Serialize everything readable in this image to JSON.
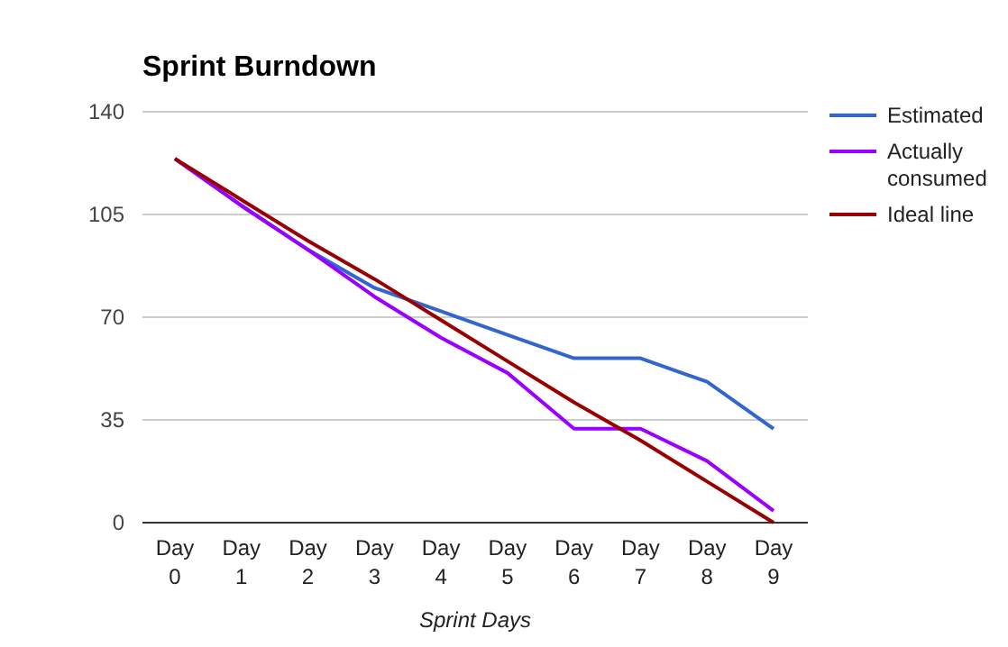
{
  "chart_data": {
    "type": "line",
    "title": "Sprint Burndown",
    "xlabel": "Sprint Days",
    "categories": [
      "Day 0",
      "Day 1",
      "Day 2",
      "Day 3",
      "Day 4",
      "Day 5",
      "Day 6",
      "Day 7",
      "Day 8",
      "Day 9"
    ],
    "series": [
      {
        "name": "Estimated",
        "color": "#3366cc",
        "values": [
          124,
          108,
          93,
          80,
          72,
          64,
          56,
          56,
          48,
          32
        ]
      },
      {
        "name": "Actually consumed",
        "color": "#9900ff",
        "values": [
          124,
          108,
          93,
          77,
          63,
          51,
          32,
          32,
          21,
          4
        ]
      },
      {
        "name": "Ideal line",
        "color": "#990000",
        "values": [
          124,
          110,
          96,
          83,
          69,
          55,
          41,
          28,
          14,
          0
        ]
      }
    ],
    "ylim": [
      0,
      140
    ],
    "yticks": [
      0,
      35,
      70,
      105,
      140
    ],
    "grid": "y",
    "legend": "right",
    "marker": "none",
    "line_style": "solid"
  }
}
